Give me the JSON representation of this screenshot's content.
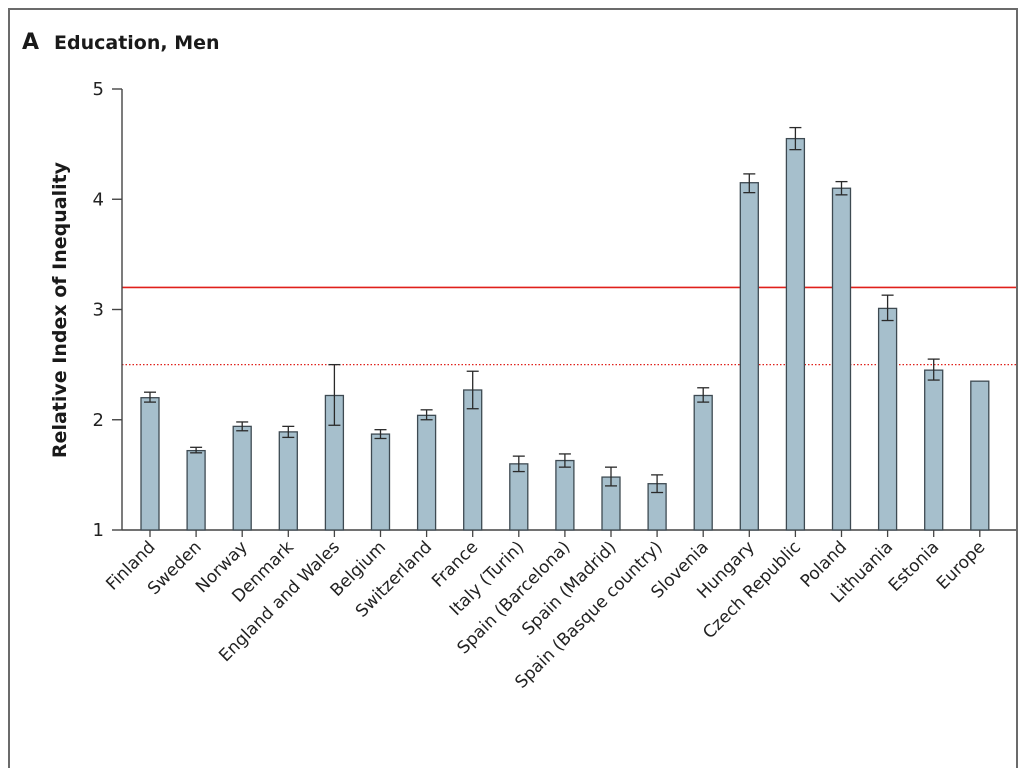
{
  "panel": {
    "letter": "A",
    "title": "Education, Men"
  },
  "chart_data": {
    "type": "bar",
    "title": "Education, Men",
    "xlabel": "",
    "ylabel": "Relative Index of Inequality",
    "ylim": [
      1,
      5
    ],
    "yticks": [
      "1",
      "2",
      "3",
      "4",
      "5"
    ],
    "categories": [
      "Finland",
      "Sweden",
      "Norway",
      "Denmark",
      "England and Wales",
      "Belgium",
      "Switzerland",
      "France",
      "Italy (Turin)",
      "Spain (Barcelona)",
      "Spain (Madrid)",
      "Spain (Basque country)",
      "Slovenia",
      "Hungary",
      "Czech Republic",
      "Poland",
      "Lithuania",
      "Estonia",
      "Europe"
    ],
    "values": [
      2.2,
      1.72,
      1.94,
      1.89,
      2.22,
      1.87,
      2.04,
      2.27,
      1.6,
      1.63,
      1.48,
      1.42,
      2.22,
      4.15,
      4.55,
      4.1,
      3.01,
      2.45,
      2.35
    ],
    "error_low": [
      2.16,
      1.7,
      1.9,
      1.84,
      1.95,
      1.83,
      2.0,
      2.1,
      1.53,
      1.57,
      1.4,
      1.34,
      2.16,
      4.06,
      4.45,
      4.04,
      2.9,
      2.36,
      null
    ],
    "error_high": [
      2.25,
      1.75,
      1.98,
      1.94,
      2.5,
      1.91,
      2.09,
      2.44,
      1.67,
      1.69,
      1.57,
      1.5,
      2.29,
      4.23,
      4.65,
      4.16,
      3.13,
      2.55,
      null
    ],
    "reference_lines": [
      {
        "value": 3.2,
        "style": "solid",
        "color": "#e0201b"
      },
      {
        "value": 2.5,
        "style": "dotted",
        "color": "#e0201b"
      }
    ],
    "colors": {
      "bar_fill": "#a6bfcc",
      "bar_stroke": "#3e4a52",
      "axis": "#444444"
    },
    "grid": false,
    "legend": "none"
  }
}
